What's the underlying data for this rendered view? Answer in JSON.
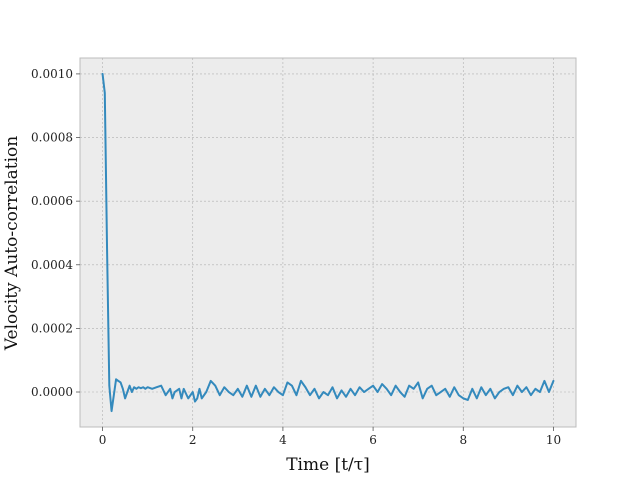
{
  "chart_data": {
    "type": "line",
    "xlabel": "Time [t/τ]",
    "ylabel": "Velocity Auto-correlation",
    "xlim": [
      -0.5,
      10.5
    ],
    "ylim": [
      -0.00011,
      0.00105
    ],
    "xticks": [
      0,
      2,
      4,
      6,
      8,
      10
    ],
    "xtick_labels": [
      "0",
      "2",
      "4",
      "6",
      "8",
      "10"
    ],
    "yticks": [
      0.0,
      0.0002,
      0.0004,
      0.0006,
      0.0008,
      0.001
    ],
    "ytick_labels": [
      "0.0000",
      "0.0002",
      "0.0004",
      "0.0006",
      "0.0008",
      "0.0010"
    ],
    "grid": true,
    "style": {
      "background": "#ececec",
      "line_color": "#348abd",
      "grid_color": "#b0b0b0"
    },
    "series": [
      {
        "x": [
          0.0,
          0.05,
          0.1,
          0.15,
          0.2,
          0.25,
          0.3,
          0.35,
          0.4,
          0.45,
          0.5,
          0.55,
          0.6,
          0.65,
          0.7,
          0.75,
          0.8,
          0.85,
          0.9,
          0.95,
          1.0,
          1.1,
          1.2,
          1.3,
          1.4,
          1.5,
          1.55,
          1.6,
          1.7,
          1.75,
          1.8,
          1.9,
          2.0,
          2.05,
          2.1,
          2.15,
          2.2,
          2.3,
          2.4,
          2.5,
          2.6,
          2.7,
          2.8,
          2.9,
          3.0,
          3.1,
          3.2,
          3.3,
          3.4,
          3.5,
          3.6,
          3.7,
          3.8,
          3.9,
          4.0,
          4.1,
          4.2,
          4.3,
          4.4,
          4.5,
          4.6,
          4.7,
          4.8,
          4.9,
          5.0,
          5.1,
          5.2,
          5.3,
          5.4,
          5.5,
          5.6,
          5.7,
          5.8,
          5.9,
          6.0,
          6.1,
          6.2,
          6.3,
          6.4,
          6.5,
          6.6,
          6.7,
          6.8,
          6.9,
          7.0,
          7.1,
          7.2,
          7.3,
          7.4,
          7.5,
          7.6,
          7.7,
          7.8,
          7.9,
          8.0,
          8.1,
          8.2,
          8.3,
          8.4,
          8.5,
          8.6,
          8.7,
          8.8,
          8.9,
          9.0,
          9.1,
          9.2,
          9.3,
          9.4,
          9.5,
          9.6,
          9.7,
          9.8,
          9.9,
          10.0
        ],
        "y": [
          0.001,
          0.00094,
          0.00045,
          2e-05,
          -6e-05,
          -1e-05,
          4e-05,
          3.5e-05,
          3e-05,
          1e-05,
          -2e-05,
          0.0,
          2e-05,
          0.0,
          1.5e-05,
          1e-05,
          1.5e-05,
          1.2e-05,
          1.5e-05,
          1e-05,
          1.5e-05,
          1e-05,
          1.5e-05,
          2e-05,
          -1e-05,
          1e-05,
          -2e-05,
          0.0,
          1e-05,
          -2e-05,
          1e-05,
          -2e-05,
          0.0,
          -3e-05,
          -2e-05,
          1e-05,
          -2e-05,
          0.0,
          3.5e-05,
          2e-05,
          -1e-05,
          1.5e-05,
          0.0,
          -1e-05,
          1e-05,
          -1.5e-05,
          2e-05,
          -1.5e-05,
          2e-05,
          -1.5e-05,
          1e-05,
          -1e-05,
          1.5e-05,
          0.0,
          -1e-05,
          3e-05,
          2e-05,
          -1e-05,
          3.5e-05,
          1.5e-05,
          -1e-05,
          1e-05,
          -2e-05,
          0.0,
          -1e-05,
          1.5e-05,
          -2e-05,
          5e-06,
          -1.5e-05,
          1e-05,
          -1e-05,
          1.5e-05,
          0.0,
          1e-05,
          2e-05,
          0.0,
          2.5e-05,
          1e-05,
          -1e-05,
          2e-05,
          0.0,
          -1.5e-05,
          2e-05,
          1e-05,
          3e-05,
          -2e-05,
          1e-05,
          2e-05,
          -1e-05,
          0.0,
          1e-05,
          -1.5e-05,
          1.5e-05,
          -1e-05,
          -2e-05,
          -2.5e-05,
          1e-05,
          -2e-05,
          1.5e-05,
          -1e-05,
          1e-05,
          -2e-05,
          0.0,
          1e-05,
          1.5e-05,
          -1e-05,
          2e-05,
          0.0,
          1.5e-05,
          -1e-05,
          1e-05,
          0.0,
          3.5e-05,
          0.0,
          3.5e-05
        ]
      }
    ]
  }
}
